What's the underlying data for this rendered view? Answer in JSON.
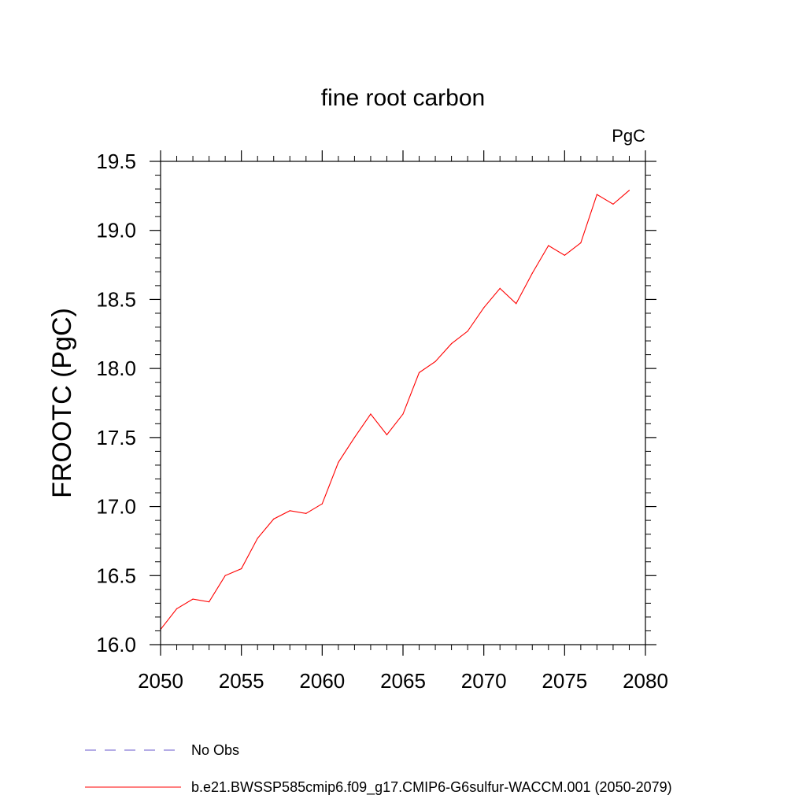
{
  "chart_data": {
    "type": "line",
    "title": "fine root carbon",
    "units_label": "PgC",
    "xlabel": "",
    "ylabel": "FROOTC  (PgC)",
    "xlim": [
      2050,
      2080
    ],
    "ylim": [
      16.0,
      19.5
    ],
    "x_ticks": [
      2050,
      2055,
      2060,
      2065,
      2070,
      2075,
      2080
    ],
    "x_tick_labels": [
      "2050",
      "2055",
      "2060",
      "2065",
      "2070",
      "2075",
      "2080"
    ],
    "y_ticks": [
      16.0,
      16.5,
      17.0,
      17.5,
      18.0,
      18.5,
      19.0,
      19.5
    ],
    "y_tick_labels": [
      "16.0",
      "16.5",
      "17.0",
      "17.5",
      "18.0",
      "18.5",
      "19.0",
      "19.5"
    ],
    "x_minor_step": 1,
    "y_minor_step": 0.1,
    "grid": false,
    "legend_position": "bottom",
    "series": [
      {
        "name": "b.e21.BWSSP585cmip6.f09_g17.CMIP6-G6sulfur-WACCM.001 (2050-2079)",
        "color": "#ff0000",
        "style": "solid",
        "x": [
          2050,
          2051,
          2052,
          2053,
          2054,
          2055,
          2056,
          2057,
          2058,
          2059,
          2060,
          2061,
          2062,
          2063,
          2064,
          2065,
          2066,
          2067,
          2068,
          2069,
          2070,
          2071,
          2072,
          2073,
          2074,
          2075,
          2076,
          2077,
          2078,
          2079
        ],
        "y": [
          16.11,
          16.26,
          16.33,
          16.31,
          16.5,
          16.55,
          16.77,
          16.91,
          16.97,
          16.95,
          17.02,
          17.32,
          17.5,
          17.67,
          17.52,
          17.67,
          17.97,
          18.05,
          18.18,
          18.27,
          18.44,
          18.58,
          18.47,
          18.69,
          18.89,
          18.82,
          18.91,
          19.26,
          19.19,
          19.29
        ]
      },
      {
        "name": "No Obs",
        "color": "#6a5acd",
        "style": "dashed",
        "x": [],
        "y": []
      }
    ]
  }
}
